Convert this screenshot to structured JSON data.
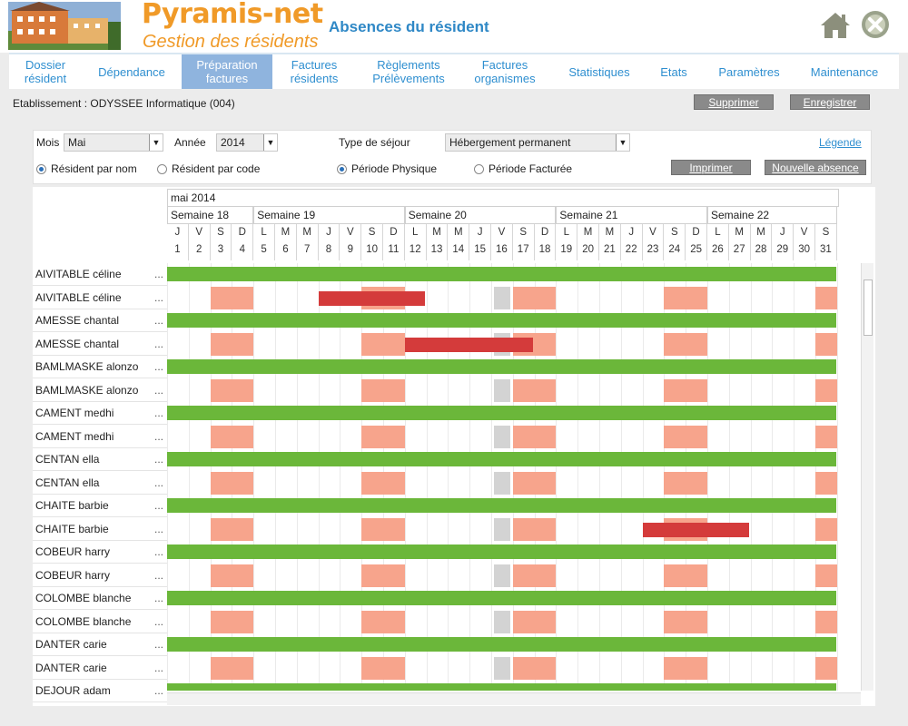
{
  "app": {
    "logo_title": "Pyramis-net",
    "logo_subtitle": "Gestion des résidents",
    "page_title": "Absences du résident",
    "brand_color": "#f09a28",
    "title_color": "#2f88c6"
  },
  "nav": {
    "items": [
      {
        "label": "Dossier\nrésident",
        "active": false
      },
      {
        "label": "Dépendance",
        "active": false
      },
      {
        "label": "Préparation\nfactures",
        "active": true
      },
      {
        "label": "Factures\nrésidents",
        "active": false
      },
      {
        "label": "Règlements\nPrélèvements",
        "active": false
      },
      {
        "label": "Factures\norganismes",
        "active": false
      },
      {
        "label": "Statistiques",
        "active": false
      },
      {
        "label": "Etats",
        "active": false
      },
      {
        "label": "Paramètres",
        "active": false
      },
      {
        "label": "Maintenance",
        "active": false
      }
    ]
  },
  "toolbar": {
    "etablissement": "Etablissement : ODYSSEE Informatique (004)",
    "delete_label": "Supprimer",
    "save_label": "Enregistrer"
  },
  "filters": {
    "month_label": "Mois",
    "month_value": "Mai",
    "year_label": "Année",
    "year_value": "2014",
    "stay_type_label": "Type de séjour",
    "stay_type_value": "Hébergement permanent",
    "legend_link": "Légende",
    "radio_by_name": "Résident par nom",
    "radio_by_code": "Résident par code",
    "radio_physical": "Période Physique",
    "radio_billed": "Période Facturée",
    "print_label": "Imprimer",
    "new_absence_label": "Nouvelle absence"
  },
  "calendar": {
    "month_title": "mai 2014",
    "weeks": [
      "Semaine 18",
      "Semaine 19",
      "Semaine 20",
      "Semaine 21",
      "Semaine 22"
    ],
    "day_letters": [
      "J",
      "V",
      "S",
      "D",
      "L",
      "M",
      "M",
      "J",
      "V",
      "S",
      "D",
      "L",
      "M",
      "M",
      "J",
      "V",
      "S",
      "D",
      "L",
      "M",
      "M",
      "J",
      "V",
      "S",
      "D",
      "L",
      "M",
      "M",
      "J",
      "V",
      "S"
    ],
    "day_numbers": [
      "1",
      "2",
      "3",
      "4",
      "5",
      "6",
      "7",
      "8",
      "9",
      "10",
      "11",
      "12",
      "13",
      "14",
      "15",
      "16",
      "17",
      "18",
      "19",
      "20",
      "21",
      "22",
      "23",
      "24",
      "25",
      "26",
      "27",
      "28",
      "29",
      "30",
      "31"
    ],
    "colors": {
      "presence": "#6bb73a",
      "weekend": "#f7a48c",
      "holiday": "#d3d3d3",
      "absence": "#d43b3b"
    }
  },
  "residents": [
    {
      "name": "AIVITABLE céline",
      "more": "..."
    },
    {
      "name": "AIVITABLE céline",
      "more": "..."
    },
    {
      "name": "AMESSE chantal",
      "more": "..."
    },
    {
      "name": "AMESSE chantal",
      "more": "..."
    },
    {
      "name": "BAMLMASKE alonzo",
      "more": "..."
    },
    {
      "name": "BAMLMASKE alonzo",
      "more": "..."
    },
    {
      "name": "CAMENT medhi",
      "more": "..."
    },
    {
      "name": "CAMENT medhi",
      "more": "..."
    },
    {
      "name": "CENTAN ella",
      "more": "..."
    },
    {
      "name": "CENTAN ella",
      "more": "..."
    },
    {
      "name": "CHAITE barbie",
      "more": "..."
    },
    {
      "name": "CHAITE barbie",
      "more": "..."
    },
    {
      "name": "COBEUR harry",
      "more": "..."
    },
    {
      "name": "COBEUR harry",
      "more": "..."
    },
    {
      "name": "COLOMBE blanche",
      "more": "..."
    },
    {
      "name": "COLOMBE blanche",
      "more": "..."
    },
    {
      "name": "DANTER carie",
      "more": "..."
    },
    {
      "name": "DANTER carie",
      "more": "..."
    },
    {
      "name": "DEJOUR adam",
      "more": "..."
    }
  ],
  "absences": [
    {
      "row": 1,
      "start_day": 8,
      "end_day": 12
    },
    {
      "row": 3,
      "start_day": 12,
      "end_day": 17
    },
    {
      "row": 11,
      "start_day": 23,
      "end_day": 27
    }
  ],
  "weekend_days": [
    3,
    4,
    10,
    11,
    17,
    18,
    24,
    25,
    31
  ],
  "holiday_days": [
    16
  ]
}
